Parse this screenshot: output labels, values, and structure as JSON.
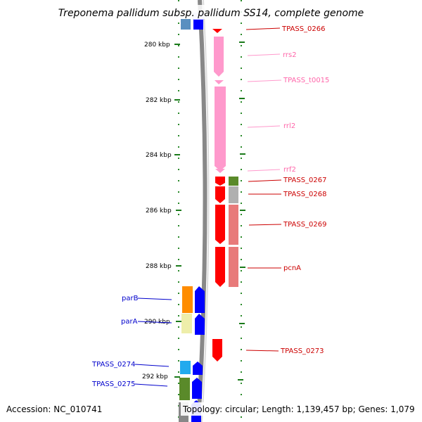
{
  "title": "Treponema pallidum subsp. pallidum SS14, complete genome",
  "accession_text": "Accession: NC_010741",
  "topology_text": "Topology: circular; Length: 1,139,457 bp; Genes: 1,079",
  "ticks": [
    "280 kbp",
    "282 kbp",
    "284 kbp",
    "286 kbp",
    "288 kbp",
    "290 kbp",
    "292 kbp"
  ],
  "labels_right": [
    {
      "name": "TPASS_0266",
      "color": "#cc0000"
    },
    {
      "name": "rrs2",
      "color": "#ff88bb"
    },
    {
      "name": "TPASS_t0015",
      "color": "#ff88bb"
    },
    {
      "name": "rrl2",
      "color": "#ff88bb"
    },
    {
      "name": "rrf2",
      "color": "#ff88bb"
    },
    {
      "name": "TPASS_0267",
      "color": "#cc0000"
    },
    {
      "name": "TPASS_0268",
      "color": "#cc0000"
    },
    {
      "name": "TPASS_0269",
      "color": "#cc0000"
    },
    {
      "name": "pcnA",
      "color": "#cc0000"
    },
    {
      "name": "TPASS_0273",
      "color": "#cc0000"
    }
  ],
  "labels_left": [
    {
      "name": "parB",
      "color": "#0000cc"
    },
    {
      "name": "parA",
      "color": "#0000cc"
    },
    {
      "name": "TPASS_0274",
      "color": "#0000cc"
    },
    {
      "name": "TPASS_0275",
      "color": "#0000cc"
    }
  ],
  "colors": {
    "forward_cds": "#ff0000",
    "rna": "#ff99cc",
    "reverse_cds": "#0000ff",
    "backbone": "#888888"
  }
}
